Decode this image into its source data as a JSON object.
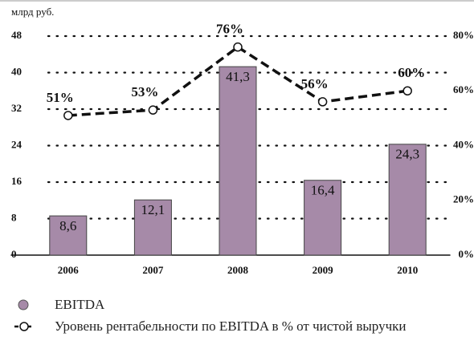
{
  "chart_data": {
    "type": "bar",
    "unit_label": "млрд руб.",
    "categories": [
      "2006",
      "2007",
      "2008",
      "2009",
      "2010"
    ],
    "series": [
      {
        "name": "EBITDA",
        "type": "bar",
        "color": "#a68aa8",
        "values": [
          8.6,
          12.1,
          41.3,
          16.4,
          24.3
        ],
        "value_labels": [
          "8,6",
          "12,1",
          "41,3",
          "16,4",
          "24,3"
        ]
      },
      {
        "name": "Уровень рентабельности по EBITDA в % от чистой выручки",
        "type": "line",
        "axis": "y2",
        "color": "#111111",
        "values": [
          51,
          53,
          76,
          56,
          60
        ],
        "value_labels": [
          "51%",
          "53%",
          "76%",
          "56%",
          "60%"
        ]
      }
    ],
    "ylim": [
      0,
      48
    ],
    "yticks": [
      0,
      8,
      16,
      24,
      32,
      40,
      48
    ],
    "y2lim": [
      0,
      80
    ],
    "y2ticks": [
      {
        "value": 0,
        "label": "0%"
      },
      {
        "value": 20,
        "label": "20%"
      },
      {
        "value": 40,
        "label": "40%"
      },
      {
        "value": 60,
        "label": "60%"
      },
      {
        "value": 80,
        "label": "80%"
      }
    ],
    "grid": true
  }
}
